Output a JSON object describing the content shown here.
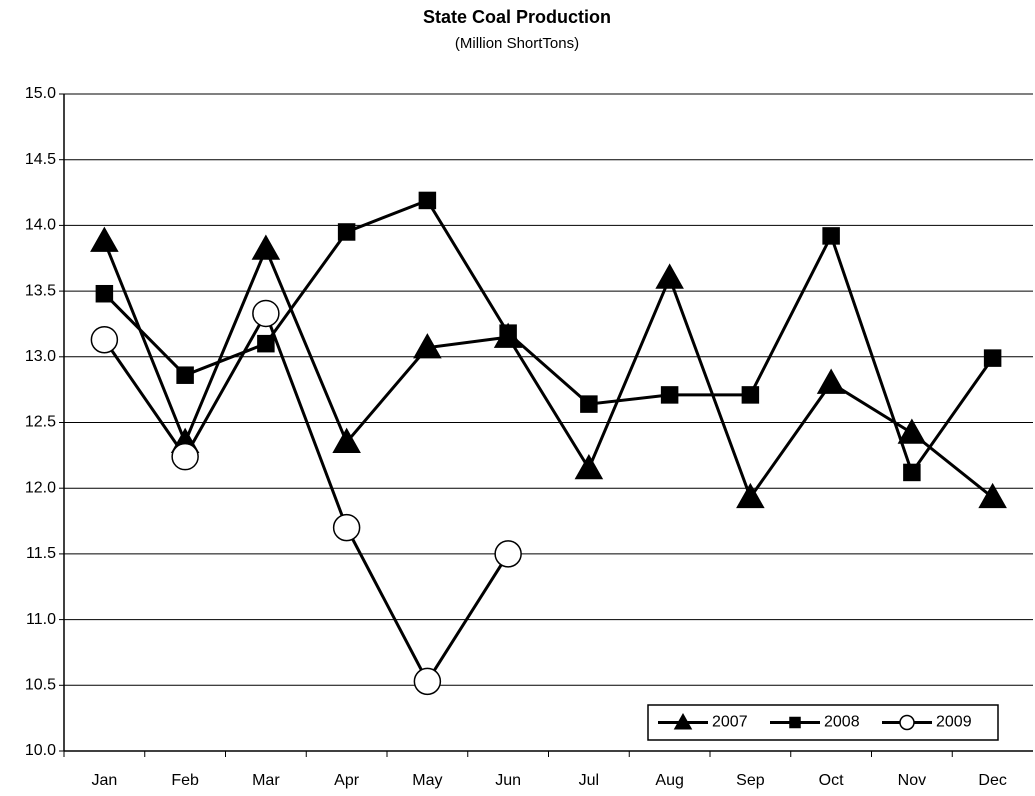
{
  "chart_data": {
    "type": "line",
    "title": "State Coal Production",
    "subtitle": "(Million ShortTons)",
    "categories": [
      "Jan",
      "Feb",
      "Mar",
      "Apr",
      "May",
      "Jun",
      "Jul",
      "Aug",
      "Sep",
      "Oct",
      "Nov",
      "Dec"
    ],
    "series": [
      {
        "name": "2007",
        "color": "#000000",
        "marker": "triangle",
        "values": [
          13.88,
          12.35,
          13.82,
          12.35,
          13.07,
          13.15,
          12.15,
          13.6,
          11.93,
          12.8,
          12.42,
          11.93
        ]
      },
      {
        "name": "2008",
        "color": "#000000",
        "marker": "square",
        "values": [
          13.48,
          12.86,
          13.1,
          13.95,
          14.19,
          13.18,
          12.64,
          12.71,
          12.71,
          13.92,
          12.12,
          12.99
        ]
      },
      {
        "name": "2009",
        "color": "#000000",
        "marker": "circle",
        "values": [
          13.13,
          12.24,
          13.33,
          11.7,
          10.53,
          11.5,
          null,
          null,
          null,
          null,
          null,
          null
        ]
      }
    ],
    "ylim": [
      10,
      15
    ],
    "yticks": [
      {
        "value": 10,
        "label": "10.0"
      },
      {
        "value": 10.5,
        "label": "10.5"
      },
      {
        "value": 11,
        "label": "11.0"
      },
      {
        "value": 11.5,
        "label": "11.5"
      },
      {
        "value": 12,
        "label": "12.0"
      },
      {
        "value": 12.5,
        "label": "12.5"
      },
      {
        "value": 13,
        "label": "13.0"
      },
      {
        "value": 13.5,
        "label": "13.5"
      },
      {
        "value": 14,
        "label": "14.0"
      },
      {
        "value": 14.5,
        "label": "14.5"
      },
      {
        "value": 15,
        "label": "15.0"
      }
    ],
    "grid": true,
    "legend": "lower right"
  }
}
